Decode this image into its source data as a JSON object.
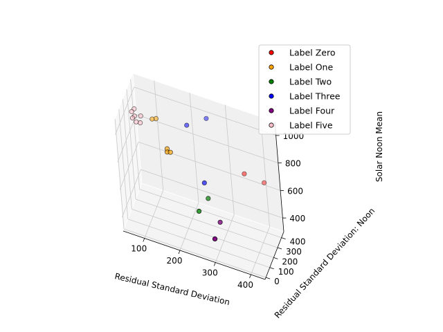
{
  "chart_data": {
    "type": "scatter3d",
    "title": "",
    "xlabel": "Residual Standard Deviation",
    "ylabel": "Residual Standard Deviation: Noon",
    "zlabel": "Solar Noon Mean",
    "xlim": [
      40,
      440
    ],
    "ylim": [
      -20,
      460
    ],
    "zlim": [
      300,
      1100
    ],
    "xticks": [
      100,
      200,
      300,
      400
    ],
    "yticks": [
      0,
      100,
      200,
      300,
      400
    ],
    "zticks": [
      400,
      600,
      800,
      1000
    ],
    "grid": true,
    "legend_position": "top-right",
    "series": [
      {
        "name": "Label Zero",
        "color": "#ff0000",
        "points": [
          {
            "x": 350,
            "y": 380,
            "z": 700
          },
          {
            "x": 400,
            "y": 420,
            "z": 650
          }
        ]
      },
      {
        "name": "Label One",
        "color": "#ffa500",
        "points": [
          {
            "x": 100,
            "y": 350,
            "z": 900
          },
          {
            "x": 110,
            "y": 360,
            "z": 905
          },
          {
            "x": 150,
            "y": 250,
            "z": 800
          },
          {
            "x": 150,
            "y": 245,
            "z": 780
          },
          {
            "x": 160,
            "y": 240,
            "z": 790
          }
        ]
      },
      {
        "name": "Label Two",
        "color": "#008000",
        "points": [
          {
            "x": 240,
            "y": 160,
            "z": 490
          },
          {
            "x": 260,
            "y": 230,
            "z": 550
          }
        ]
      },
      {
        "name": "Label Three",
        "color": "#0000ff",
        "points": [
          {
            "x": 200,
            "y": 340,
            "z": 950
          },
          {
            "x": 250,
            "y": 250,
            "z": 640
          },
          {
            "x": 250,
            "y": 400,
            "z": 1000
          }
        ]
      },
      {
        "name": "Label Four",
        "color": "#800080",
        "points": [
          {
            "x": 300,
            "y": 10,
            "z": 450
          },
          {
            "x": 300,
            "y": 150,
            "z": 470
          }
        ]
      },
      {
        "name": "Label Five",
        "color": "#ffc0cb",
        "points": [
          {
            "x": 50,
            "y": 300,
            "z": 900
          },
          {
            "x": 55,
            "y": 310,
            "z": 910
          },
          {
            "x": 60,
            "y": 300,
            "z": 880
          },
          {
            "x": 70,
            "y": 310,
            "z": 875
          },
          {
            "x": 70,
            "y": 330,
            "z": 910
          },
          {
            "x": 45,
            "y": 330,
            "z": 920
          },
          {
            "x": 50,
            "y": 350,
            "z": 930
          }
        ]
      }
    ]
  }
}
